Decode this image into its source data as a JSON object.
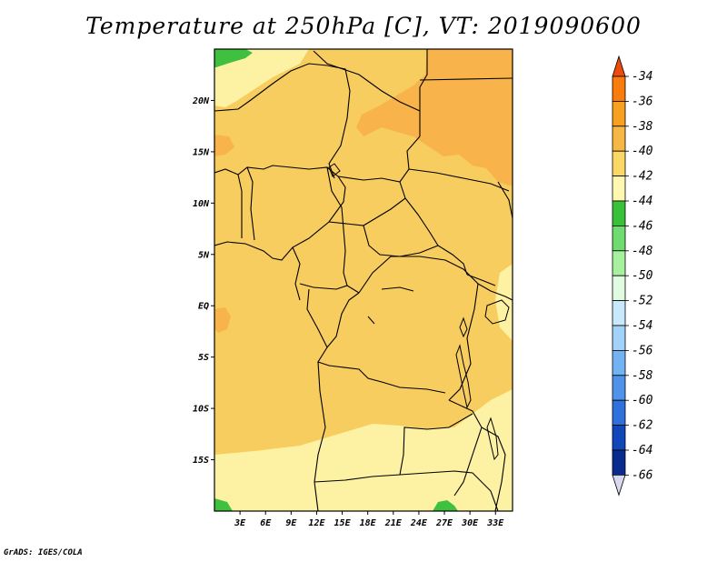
{
  "title": "Temperature at 250hPa [C], VT: 2019090600",
  "credit": "GrADS: IGES/COLA",
  "map": {
    "lat_labels": [
      "20N",
      "15N",
      "10N",
      "5N",
      "EQ",
      "5S",
      "10S",
      "15S"
    ],
    "lat_values": [
      20,
      15,
      10,
      5,
      0,
      -5,
      -10,
      -15
    ],
    "lon_labels": [
      "3E",
      "6E",
      "9E",
      "12E",
      "15E",
      "18E",
      "21E",
      "24E",
      "27E",
      "30E",
      "33E"
    ],
    "lon_values": [
      3,
      6,
      9,
      12,
      15,
      18,
      21,
      24,
      27,
      30,
      33
    ],
    "lon_range": [
      0,
      35
    ],
    "lat_range": [
      -20,
      25
    ]
  },
  "colorbar": {
    "labels": [
      "-34",
      "-36",
      "-38",
      "-40",
      "-42",
      "-44",
      "-46",
      "-48",
      "-50",
      "-52",
      "-54",
      "-56",
      "-58",
      "-60",
      "-62",
      "-64",
      "-66"
    ],
    "colors": [
      "#ee4b0a",
      "#fa7c0c",
      "#f8a020",
      "#f7b745",
      "#fad866",
      "#fef8b0",
      "#39c13a",
      "#6edc6e",
      "#a7f09e",
      "#e0fbe0",
      "#c8e8fb",
      "#a2d2f8",
      "#74b3f2",
      "#4f93ea",
      "#2e70dc",
      "#1147b8",
      "#0a2b8e",
      "#0a0f5e"
    ]
  },
  "colors": {
    "c40": "#f7cd5f",
    "c38": "#f8b44a",
    "c42": "#fdf1a4",
    "c44": "#3fc13f",
    "border": "#000000"
  }
}
